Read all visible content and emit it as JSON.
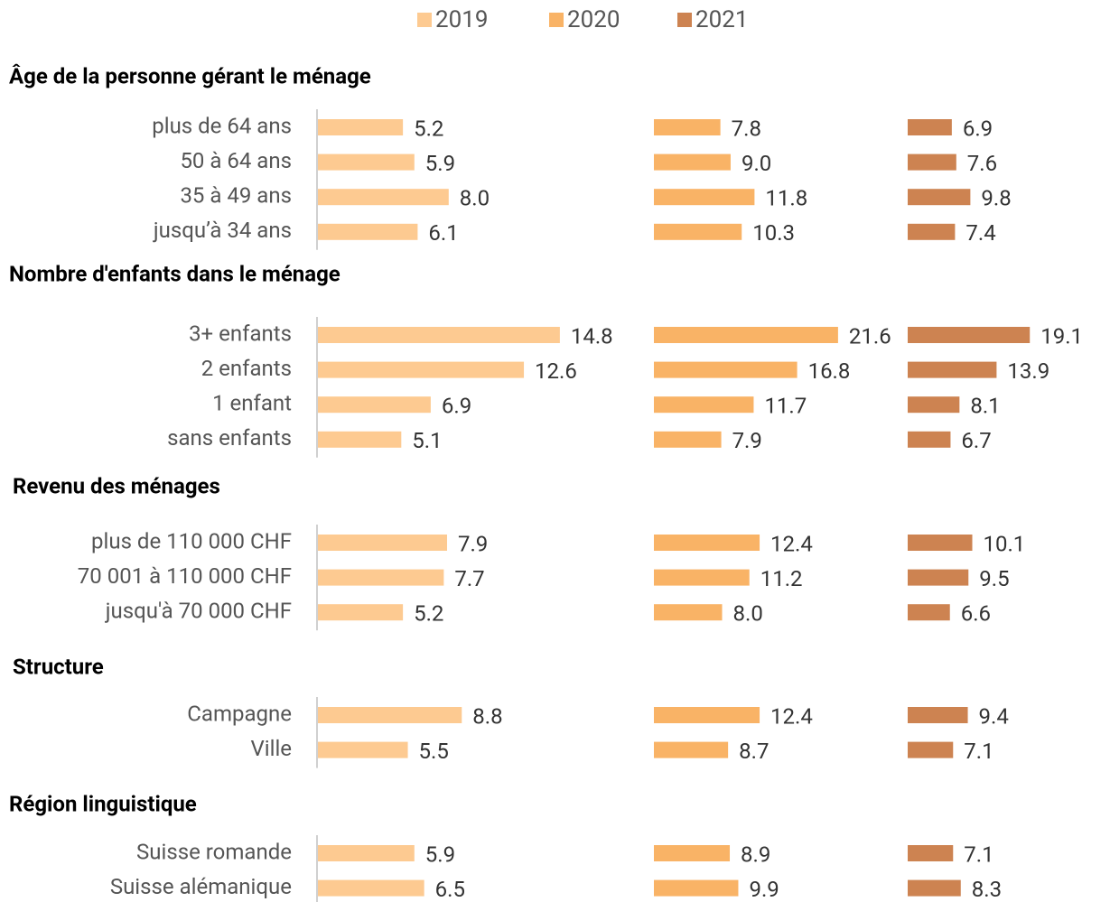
{
  "chart_data": {
    "type": "bar",
    "orientation": "horizontal",
    "series": [
      {
        "name": "2019",
        "color": "#fdca91",
        "xlim": [
          0,
          20
        ]
      },
      {
        "name": "2020",
        "color": "#f9b366",
        "xlim": [
          0,
          25
        ]
      },
      {
        "name": "2021",
        "color": "#cd8351",
        "xlim": [
          0,
          25
        ]
      }
    ],
    "groups": [
      {
        "title": "Âge de la personne gérant le ménage",
        "categories": [
          "plus de 64 ans",
          "50 à 64 ans",
          "35 à 49 ans",
          "jusqu’à 34 ans"
        ],
        "values": [
          [
            5.2,
            5.9,
            8.0,
            6.1
          ],
          [
            7.8,
            9.0,
            11.8,
            10.3
          ],
          [
            6.9,
            7.6,
            9.8,
            7.4
          ]
        ],
        "value_labels": [
          [
            "5.2",
            "5.9",
            "8.0",
            "6.1"
          ],
          [
            "7.8",
            "9.0",
            "11.8",
            "10.3"
          ],
          [
            "6.9",
            "7.6",
            "9.8",
            "7.4"
          ]
        ]
      },
      {
        "title": "Nombre d'enfants dans le ménage",
        "categories": [
          "3+ enfants",
          "2 enfants",
          "1 enfant",
          "sans enfants"
        ],
        "values": [
          [
            14.8,
            12.6,
            6.9,
            5.1
          ],
          [
            21.6,
            16.8,
            11.7,
            7.9
          ],
          [
            19.1,
            13.9,
            8.1,
            6.7
          ]
        ],
        "value_labels": [
          [
            "14.8",
            "12.6",
            "6.9",
            "5.1"
          ],
          [
            "21.6",
            "16.8",
            "11.7",
            "7.9"
          ],
          [
            "19.1",
            "13.9",
            "8.1",
            "6.7"
          ]
        ]
      },
      {
        "title": "Revenu des ménages",
        "categories": [
          "plus de 110 000 CHF",
          "70 001 à 110 000 CHF",
          "jusqu'à 70 000 CHF"
        ],
        "values": [
          [
            7.9,
            7.7,
            5.2
          ],
          [
            12.4,
            11.2,
            8.0
          ],
          [
            10.1,
            9.5,
            6.6
          ]
        ],
        "value_labels": [
          [
            "7.9",
            "7.7",
            "5.2"
          ],
          [
            "12.4",
            "11.2",
            "8.0"
          ],
          [
            "10.1",
            "9.5",
            "6.6"
          ]
        ]
      },
      {
        "title": "Structure",
        "categories": [
          "Campagne",
          "Ville"
        ],
        "values": [
          [
            8.8,
            5.5
          ],
          [
            12.4,
            8.7
          ],
          [
            9.4,
            7.1
          ]
        ],
        "value_labels": [
          [
            "8.8",
            "5.5"
          ],
          [
            "12.4",
            "8.7"
          ],
          [
            "9.4",
            "7.1"
          ]
        ]
      },
      {
        "title": "Région linguistique",
        "categories": [
          "Suisse romande",
          "Suisse alémanique"
        ],
        "values": [
          [
            5.9,
            6.5
          ],
          [
            8.9,
            9.9
          ],
          [
            7.1,
            8.3
          ]
        ],
        "value_labels": [
          [
            "5.9",
            "6.5"
          ],
          [
            "8.9",
            "9.9"
          ],
          [
            "7.1",
            "8.3"
          ]
        ]
      }
    ]
  }
}
